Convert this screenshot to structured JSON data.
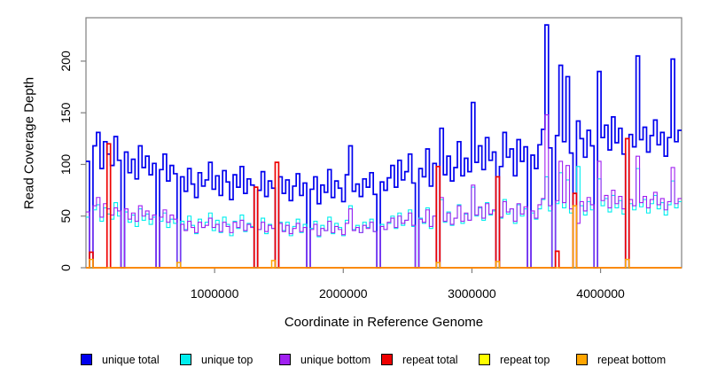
{
  "chart_data": {
    "type": "line",
    "subtype": "step",
    "title": "",
    "xlabel": "Coordinate in Reference Genome",
    "ylabel": "Read Coverage Depth",
    "xlim": [
      0,
      4630000
    ],
    "ylim": [
      0,
      242
    ],
    "grid": false,
    "legend_position": "bottom",
    "x_ticks": [
      1000000,
      2000000,
      3000000,
      4000000
    ],
    "x_tick_labels": [
      "1000000",
      "2000000",
      "3000000",
      "4000000"
    ],
    "y_ticks": [
      0,
      50,
      100,
      150,
      200
    ],
    "y_tick_labels": [
      "0",
      "50",
      "100",
      "150",
      "200"
    ],
    "n_bins": 170,
    "bin_size": 27235,
    "axis_color": "#7f7f7f",
    "series": [
      {
        "name": "unique total",
        "color": "#0000EE",
        "width": 1.7,
        "values": [
          103,
          0,
          118,
          131,
          96,
          122,
          110,
          99,
          127,
          104,
          0,
          112,
          92,
          105,
          86,
          118,
          97,
          108,
          90,
          101,
          0,
          95,
          110,
          84,
          99,
          91,
          0,
          88,
          74,
          96,
          81,
          68,
          92,
          79,
          85,
          102,
          76,
          89,
          70,
          94,
          83,
          66,
          90,
          78,
          98,
          72,
          86,
          80,
          0,
          75,
          93,
          69,
          84,
          77,
          0,
          88,
          72,
          85,
          65,
          79,
          91,
          70,
          82,
          0,
          76,
          88,
          62,
          80,
          73,
          95,
          68,
          84,
          77,
          64,
          90,
          118,
          74,
          81,
          69,
          86,
          78,
          92,
          71,
          0,
          83,
          75,
          87,
          99,
          78,
          104,
          85,
          93,
          110,
          82,
          0,
          96,
          88,
          115,
          79,
          101,
          0,
          135,
          90,
          108,
          84,
          97,
          122,
          89,
          106,
          93,
          160,
          102,
          118,
          95,
          126,
          104,
          112,
          0,
          98,
          131,
          107,
          115,
          89,
          124,
          103,
          117,
          0,
          109,
          96,
          119,
          134,
          235,
          116,
          0,
          128,
          196,
          122,
          185,
          111,
          0,
          142,
          125,
          107,
          133,
          118,
          0,
          190,
          126,
          138,
          114,
          146,
          121,
          135,
          110,
          0,
          129,
          117,
          205,
          124,
          136,
          112,
          128,
          143,
          119,
          131,
          108,
          126,
          202,
          122,
          133
        ]
      },
      {
        "name": "unique top",
        "color": "#00EEEE",
        "width": 1.1,
        "values": [
          49,
          0,
          56,
          61,
          45,
          58,
          52,
          47,
          63,
          50,
          0,
          54,
          44,
          51,
          40,
          57,
          46,
          52,
          42,
          49,
          0,
          45,
          53,
          39,
          47,
          43,
          0,
          45,
          37,
          50,
          41,
          33,
          47,
          39,
          44,
          53,
          36,
          46,
          34,
          49,
          42,
          31,
          45,
          38,
          51,
          35,
          43,
          40,
          0,
          37,
          48,
          33,
          42,
          38,
          0,
          44,
          36,
          44,
          31,
          40,
          47,
          34,
          42,
          0,
          38,
          45,
          30,
          41,
          36,
          49,
          33,
          43,
          39,
          31,
          46,
          60,
          37,
          41,
          34,
          44,
          39,
          47,
          35,
          0,
          42,
          37,
          43,
          50,
          38,
          53,
          41,
          46,
          56,
          40,
          0,
          48,
          43,
          58,
          38,
          50,
          0,
          66,
          44,
          54,
          41,
          48,
          61,
          43,
          52,
          46,
          78,
          50,
          58,
          46,
          63,
          51,
          55,
          0,
          48,
          66,
          52,
          57,
          43,
          61,
          50,
          57,
          0,
          53,
          47,
          57,
          66,
          88,
          55,
          0,
          62,
          92,
          58,
          85,
          53,
          0,
          98,
          60,
          51,
          64,
          56,
          0,
          86,
          60,
          67,
          54,
          70,
          58,
          65,
          52,
          0,
          62,
          56,
          96,
          59,
          66,
          53,
          62,
          70,
          57,
          63,
          51,
          61,
          84,
          58,
          64
        ]
      },
      {
        "name": "unique bottom",
        "color": "#A020F0",
        "width": 1.1,
        "values": [
          54,
          0,
          60,
          68,
          49,
          62,
          57,
          51,
          58,
          55,
          0,
          57,
          47,
          53,
          45,
          60,
          50,
          55,
          47,
          51,
          0,
          49,
          56,
          44,
          51,
          47,
          0,
          42,
          36,
          45,
          39,
          34,
          44,
          39,
          41,
          48,
          39,
          42,
          35,
          44,
          40,
          34,
          44,
          39,
          46,
          36,
          42,
          39,
          0,
          37,
          44,
          35,
          41,
          38,
          0,
          43,
          35,
          41,
          33,
          38,
          43,
          35,
          39,
          0,
          37,
          42,
          31,
          38,
          36,
          45,
          34,
          40,
          37,
          32,
          43,
          57,
          36,
          39,
          34,
          41,
          38,
          44,
          35,
          0,
          40,
          37,
          44,
          48,
          39,
          50,
          43,
          46,
          53,
          41,
          0,
          47,
          44,
          56,
          40,
          50,
          0,
          68,
          45,
          53,
          42,
          48,
          60,
          45,
          53,
          46,
          80,
          51,
          59,
          48,
          62,
          52,
          56,
          0,
          49,
          64,
          54,
          57,
          45,
          62,
          52,
          59,
          0,
          55,
          48,
          61,
          67,
          148,
          60,
          0,
          65,
          103,
          63,
          99,
          57,
          0,
          43,
          64,
          55,
          68,
          61,
          0,
          103,
          65,
          70,
          58,
          75,
          62,
          69,
          57,
          0,
          66,
          60,
          108,
          63,
          69,
          58,
          66,
          73,
          61,
          67,
          56,
          64,
          97,
          62,
          67
        ]
      },
      {
        "name": "repeat total",
        "color": "#EE0000",
        "width": 1.7,
        "base": 0,
        "spikes": {
          "1": 15,
          "6": 120,
          "48": 78,
          "54": 102,
          "100": 98,
          "117": 88,
          "134": 16,
          "139": 72,
          "154": 125
        }
      },
      {
        "name": "repeat top",
        "color": "#FFFF00",
        "width": 1.1,
        "base": 0,
        "spikes": {}
      },
      {
        "name": "repeat bottom",
        "color": "#FFA500",
        "width": 1.5,
        "base": 0,
        "spikes": {
          "1": 8,
          "26": 5,
          "53": 7,
          "100": 5,
          "117": 6,
          "139": 60,
          "154": 8
        }
      }
    ],
    "legend": {
      "items": [
        {
          "label": "unique total",
          "color": "#0000EE"
        },
        {
          "label": "unique top",
          "color": "#00EEEE"
        },
        {
          "label": "unique bottom",
          "color": "#A020F0"
        },
        {
          "label": "repeat total",
          "color": "#EE0000"
        },
        {
          "label": "repeat top",
          "color": "#FFFF00"
        },
        {
          "label": "repeat bottom",
          "color": "#FFA500"
        }
      ]
    }
  }
}
